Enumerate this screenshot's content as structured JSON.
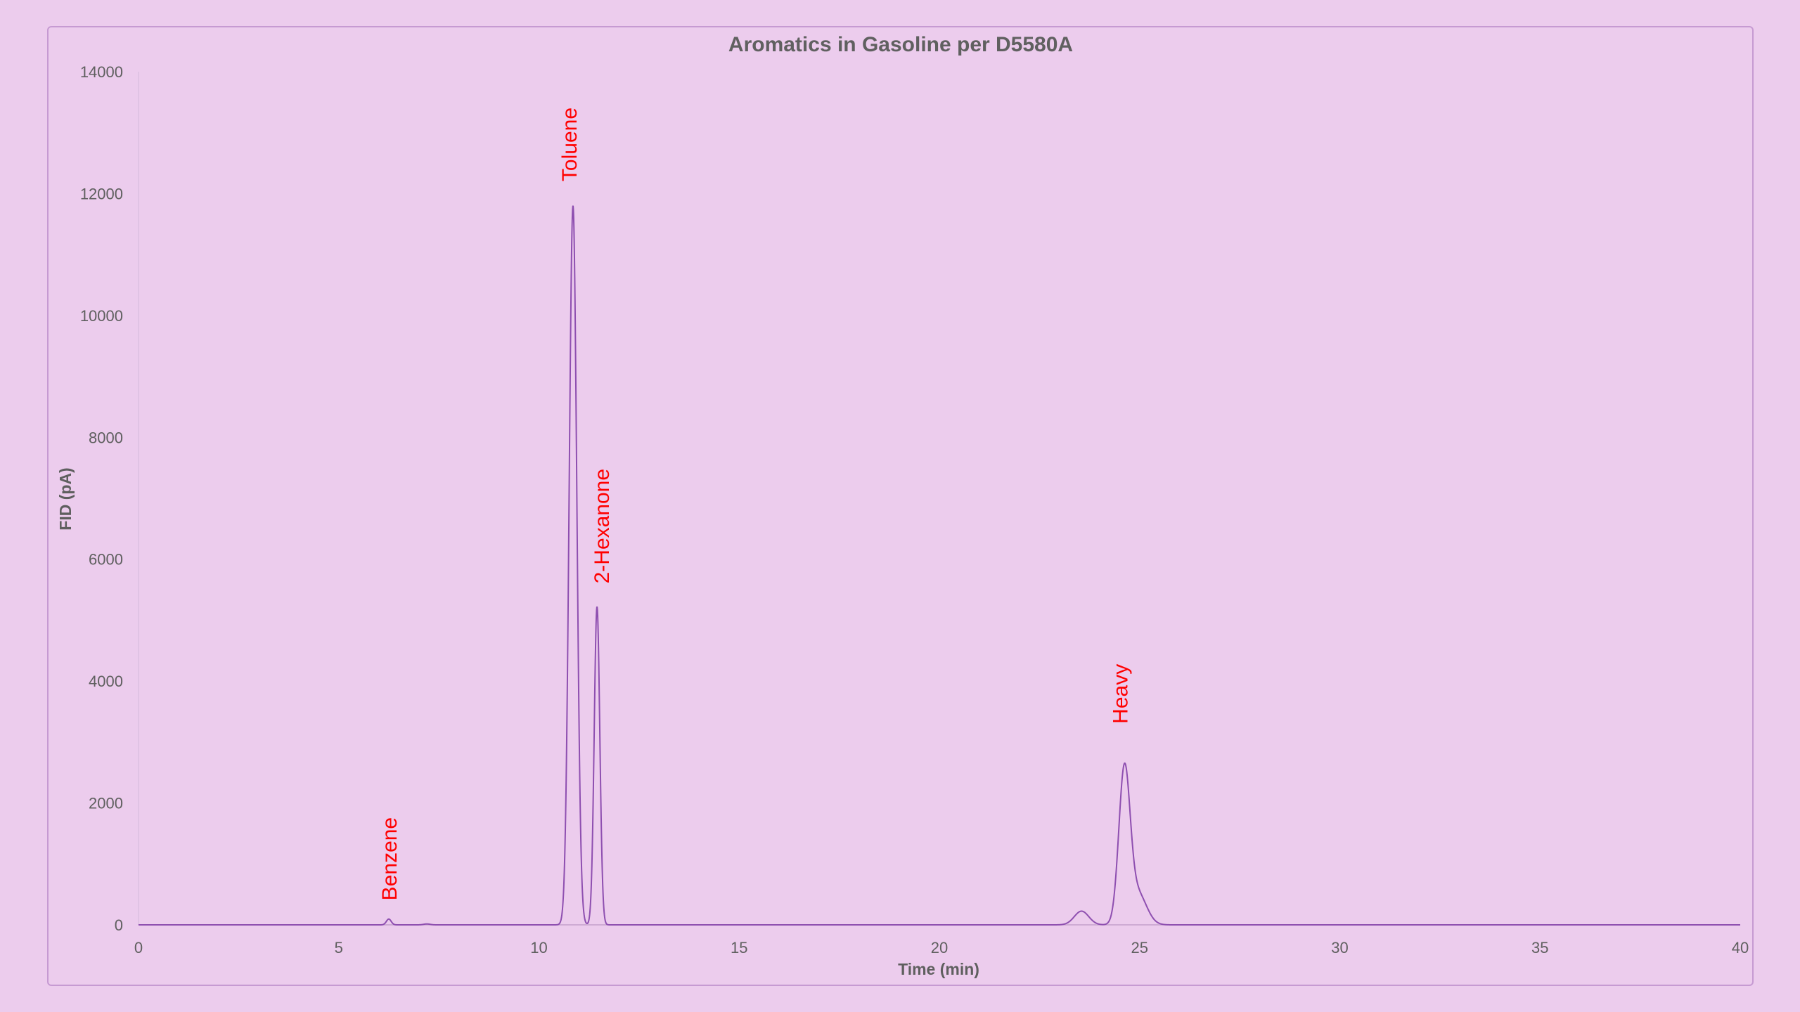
{
  "chart_data": {
    "type": "line",
    "title": "Aromatics in Gasoline per D5580A",
    "xlabel": "Time (min)",
    "ylabel": "FID (pA)",
    "xlim": [
      0,
      40
    ],
    "ylim": [
      0,
      14000
    ],
    "x_ticks": [
      0,
      5,
      10,
      15,
      20,
      25,
      30,
      35,
      40
    ],
    "y_ticks": [
      0,
      2000,
      4000,
      6000,
      8000,
      10000,
      12000,
      14000
    ],
    "grid": false,
    "legend": "none",
    "line_color": "#8e4fb0",
    "label_color": "#ff0000",
    "series": [
      {
        "peaks": [
          {
            "time": 6.25,
            "height": 95,
            "width": 0.06
          },
          {
            "time": 7.2,
            "height": 15,
            "width": 0.08
          },
          {
            "time": 10.85,
            "height": 11800,
            "width": 0.095
          },
          {
            "time": 11.45,
            "height": 5220,
            "width": 0.07
          },
          {
            "time": 23.55,
            "height": 225,
            "width": 0.18
          },
          {
            "time": 24.62,
            "height": 2480,
            "width": 0.14
          },
          {
            "time": 24.95,
            "height": 520,
            "width": 0.22
          }
        ]
      }
    ],
    "annotations": [
      {
        "text": "Benzene",
        "x": 6.25,
        "y": 400
      },
      {
        "text": "Toluene",
        "x": 10.75,
        "y": 12200
      },
      {
        "text": "2-Hexanone",
        "x": 11.55,
        "y": 5600
      },
      {
        "text": "Heavy",
        "x": 24.5,
        "y": 3300
      }
    ]
  }
}
